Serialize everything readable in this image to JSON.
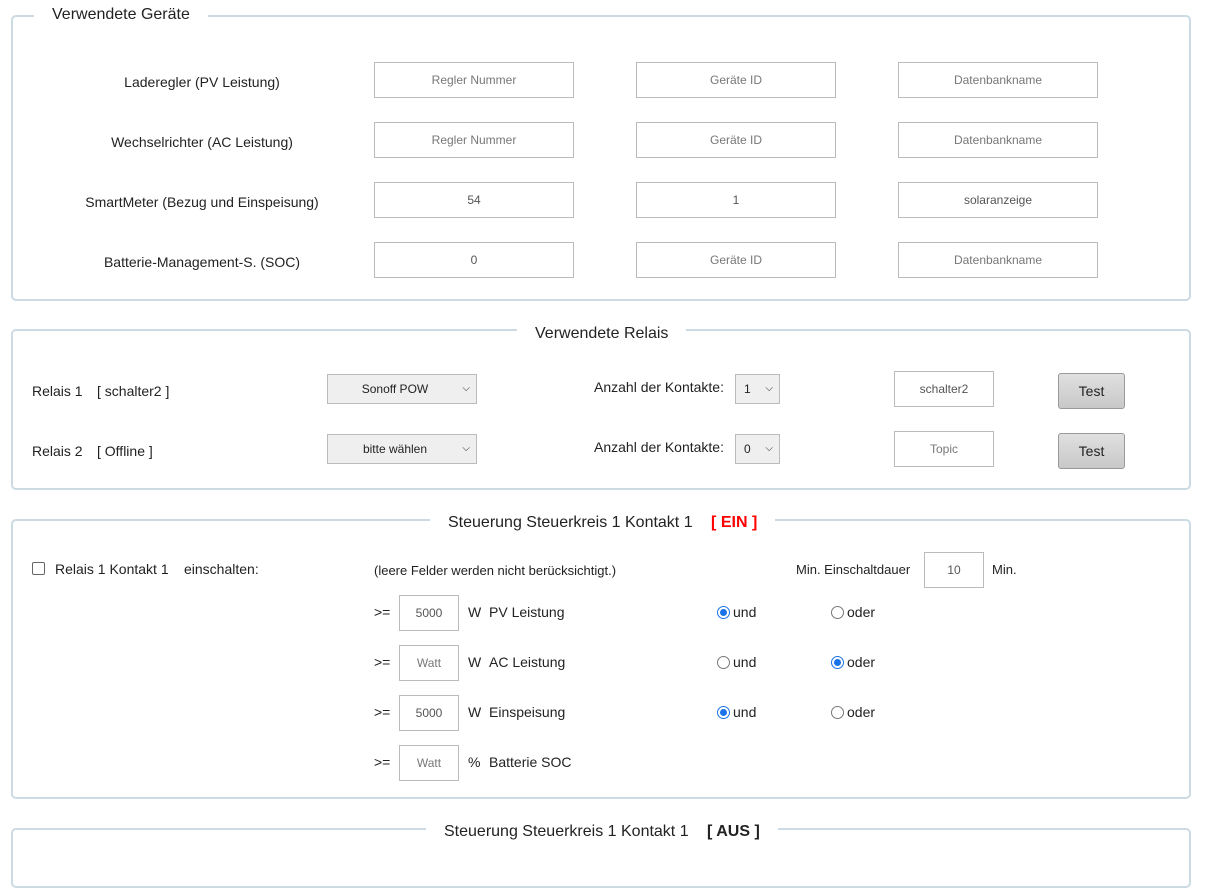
{
  "devices": {
    "legend": "Verwendete Geräte",
    "rows": [
      {
        "label": "Laderegler (PV Leistung)",
        "regler": "",
        "geraet": "",
        "db": ""
      },
      {
        "label": "Wechselrichter (AC Leistung)",
        "regler": "",
        "geraet": "",
        "db": ""
      },
      {
        "label": "SmartMeter (Bezug und Einspeisung)",
        "regler": "54",
        "geraet": "1",
        "db": "solaranzeige"
      },
      {
        "label": "Batterie-Management-S. (SOC)",
        "regler": "0",
        "geraet": "",
        "db": ""
      }
    ],
    "placeholders": {
      "regler": "Regler Nummer",
      "geraet": "Geräte ID",
      "db": "Datenbankname"
    }
  },
  "relays": {
    "legend": "Verwendete Relais",
    "contacts_label": "Anzahl der Kontakte:",
    "test_label": "Test",
    "topic_placeholder": "Topic",
    "rows": [
      {
        "name": "Relais 1",
        "status": "[ schalter2 ]",
        "type": "Sonoff POW",
        "contacts": "1",
        "topic": "schalter2"
      },
      {
        "name": "Relais 2",
        "status": "[ Offline ]",
        "type": "bitte wählen",
        "contacts": "0",
        "topic": ""
      }
    ]
  },
  "control_on": {
    "legend": "Steuerung Steuerkreis 1 Kontakt 1",
    "state": "[ EIN ]",
    "state_color": "#ff0000",
    "enable_checked": false,
    "enable_label": "Relais 1 Kontakt 1",
    "enable_suffix": "einschalten:",
    "hint": "(leere Felder werden nicht berücksichtigt.)",
    "min_duration_label": "Min. Einschaltdauer",
    "min_duration_value": "10",
    "min_unit": "Min.",
    "op": ">=",
    "and_label": "und",
    "or_label": "oder",
    "placeholder": "Watt",
    "conditions": [
      {
        "value": "5000",
        "unit": "W",
        "label": "PV Leistung",
        "logic": "und"
      },
      {
        "value": "",
        "unit": "W",
        "label": "AC Leistung",
        "logic": "oder"
      },
      {
        "value": "5000",
        "unit": "W",
        "label": "Einspeisung",
        "logic": "und"
      },
      {
        "value": "",
        "unit": "%",
        "label": "Batterie SOC",
        "logic": null
      }
    ]
  },
  "control_off": {
    "legend": "Steuerung Steuerkreis 1 Kontakt 1",
    "state": "[ AUS ]"
  }
}
